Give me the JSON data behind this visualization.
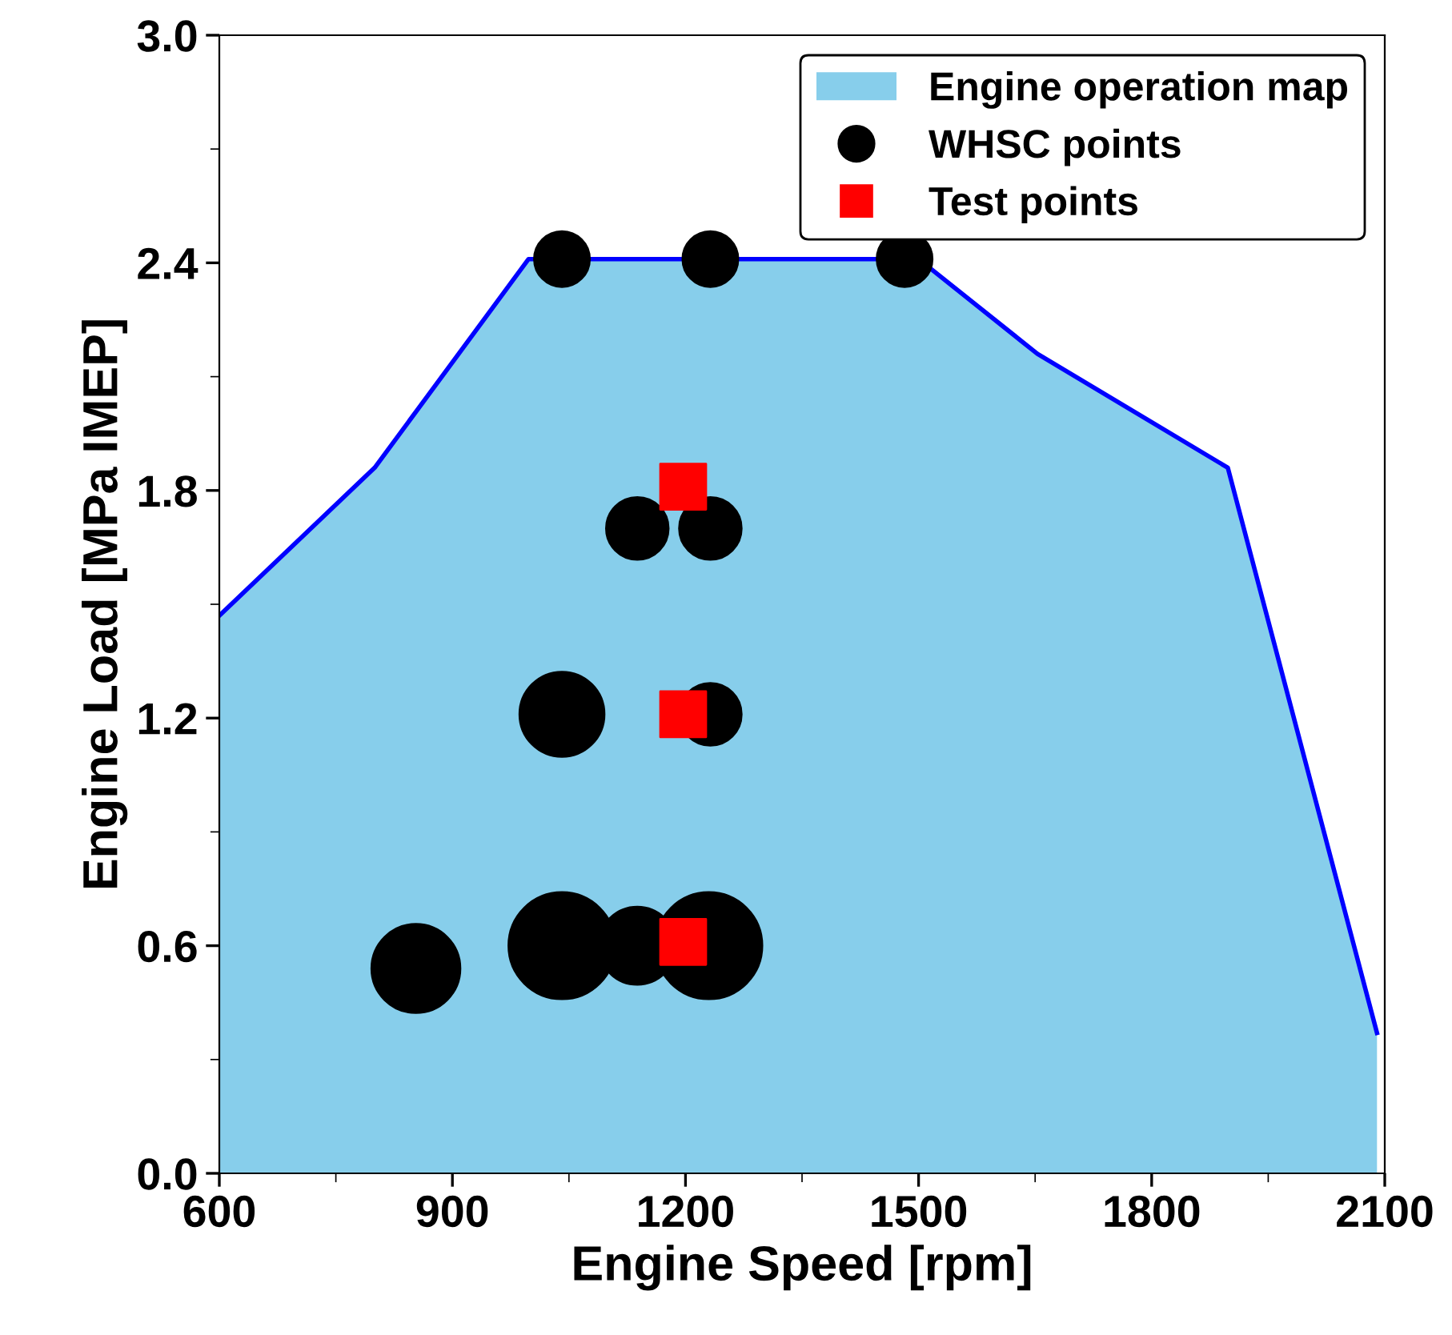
{
  "chart_data": {
    "type": "bubble",
    "xlabel": "Engine Speed [rpm]",
    "ylabel": "Engine Load [MPa IMEP]",
    "xlim": [
      600,
      2100
    ],
    "xticks": [
      600,
      900,
      1200,
      1500,
      1800,
      2100
    ],
    "ylim": [
      0,
      3.0
    ],
    "yticks": [
      {
        "value": 0,
        "label": "0.0"
      },
      0.6,
      1.2,
      1.8,
      2.4,
      {
        "value": 3.0,
        "label": "3.0"
      }
    ],
    "grid": false,
    "legend": "top right",
    "series": [
      {
        "name": "Engine operation map",
        "type": "area",
        "color": "#87ceeb",
        "x": [
          600,
          800,
          998,
          1500,
          1653,
          1898,
          2090
        ],
        "values": [
          1.47,
          1.86,
          2.41,
          2.41,
          2.16,
          1.86,
          0.37
        ]
      },
      {
        "name": "WHSC points",
        "color": "#000000",
        "x": [
          1041,
          1232,
          1482,
          1138,
          1232,
          1041,
          1232,
          853,
          1041,
          1138,
          1230
        ],
        "values": [
          2.41,
          2.41,
          2.41,
          1.7,
          1.7,
          1.21,
          1.21,
          0.54,
          0.6,
          0.6,
          0.6
        ],
        "sizes": [
          0.27,
          0.27,
          0.27,
          0.34,
          0.34,
          0.63,
          0.34,
          0.69,
          1,
          0.53,
          1
        ]
      },
      {
        "name": "Test points",
        "type": "scatter",
        "marker": "square",
        "color": "#ff0000",
        "x": [
          1197,
          1197,
          1197
        ],
        "values": [
          1.81,
          1.21,
          0.61
        ]
      }
    ]
  }
}
